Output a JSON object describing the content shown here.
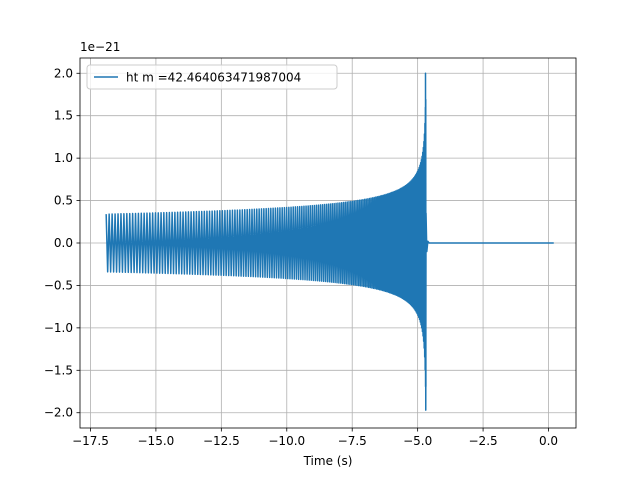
{
  "chart_data": {
    "type": "line",
    "title": "",
    "xlabel": "Time (s)",
    "ylabel": "",
    "y_offset_label": "1e−21",
    "xlim": [
      -17.9,
      1.05
    ],
    "ylim": [
      -2.18,
      2.18
    ],
    "x_ticks": [
      {
        "value": -17.5,
        "label": "−17.5"
      },
      {
        "value": -15.0,
        "label": "−15.0"
      },
      {
        "value": -12.5,
        "label": "−12.5"
      },
      {
        "value": -10.0,
        "label": "−10.0"
      },
      {
        "value": -7.5,
        "label": "−7.5"
      },
      {
        "value": -5.0,
        "label": "−5.0"
      },
      {
        "value": -2.5,
        "label": "−2.5"
      },
      {
        "value": 0.0,
        "label": "0.0"
      }
    ],
    "y_ticks": [
      {
        "value": -2.0,
        "label": "−2.0"
      },
      {
        "value": -1.5,
        "label": "−1.5"
      },
      {
        "value": -1.0,
        "label": "−1.0"
      },
      {
        "value": -0.5,
        "label": "−0.5"
      },
      {
        "value": 0.0,
        "label": "0.0"
      },
      {
        "value": 0.5,
        "label": "0.5"
      },
      {
        "value": 1.0,
        "label": "1.0"
      },
      {
        "value": 1.5,
        "label": "1.5"
      },
      {
        "value": 2.0,
        "label": "2.0"
      }
    ],
    "grid": true,
    "legend_position": "upper-left",
    "series": [
      {
        "name": "ht m =42.464063471987004",
        "color": "#1f77b4",
        "waveform": {
          "t_start": -16.9,
          "t_merger": -4.68,
          "t_end": 0.2,
          "amplitude_start": 0.34,
          "amplitude_peak": 2.0
        }
      }
    ]
  }
}
